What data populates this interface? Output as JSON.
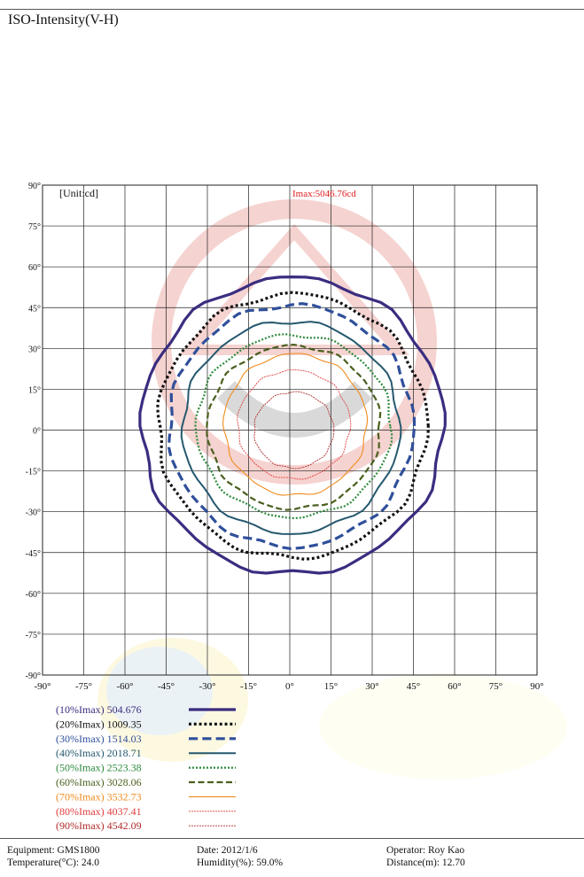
{
  "header": {
    "title": "ISO-Intensity(V-H)"
  },
  "chart_data": {
    "type": "line",
    "title": "ISO-Intensity(V-H)",
    "unit_label": "[Unit:cd]",
    "imax_label": "Imax:5046.76cd",
    "imax_cd": 5046.76,
    "xlim": [
      -90,
      90
    ],
    "ylim": [
      -90,
      90
    ],
    "x_ticks": [
      "-90°",
      "-75°",
      "-60°",
      "-45°",
      "-30°",
      "-15°",
      "0°",
      "15°",
      "30°",
      "45°",
      "60°",
      "75°",
      "90°"
    ],
    "y_ticks": [
      "90°",
      "75°",
      "60°",
      "45°",
      "30°",
      "15°",
      "0°",
      "-15°",
      "-30°",
      "-45°",
      "-60°",
      "-75°",
      "-90°"
    ],
    "grid": true,
    "series": [
      {
        "name": "(10%Imax) 504.676",
        "label": "(10%Imax)",
        "value": "504.676",
        "color": "#3a2d80",
        "dash": "solid",
        "width": 3.2,
        "extent": {
          "left": -54,
          "right": 56,
          "top": 56,
          "bottom": -53
        }
      },
      {
        "name": "(20%Imax) 1009.35",
        "label": "(20%Imax)",
        "value": "1009.35",
        "color": "#111111",
        "dash": "dot",
        "width": 3.2,
        "extent": {
          "left": -48,
          "right": 50,
          "top": 50,
          "bottom": -47
        }
      },
      {
        "name": "(30%Imax) 1514.03",
        "label": "(30%Imax)",
        "value": "1514.03",
        "color": "#2f4f9a",
        "dash": "dash",
        "width": 3.2,
        "extent": {
          "left": -44,
          "right": 45,
          "top": 46,
          "bottom": -43
        }
      },
      {
        "name": "(40%Imax) 2018.71",
        "label": "(40%Imax)",
        "value": "2018.71",
        "color": "#25586e",
        "dash": "solid",
        "width": 2,
        "extent": {
          "left": -39,
          "right": 40,
          "top": 40,
          "bottom": -38
        }
      },
      {
        "name": "(50%Imax) 2523.38",
        "label": "(50%Imax)",
        "value": "2523.38",
        "color": "#2d8a3c",
        "dash": "dot",
        "width": 2.2,
        "extent": {
          "left": -34,
          "right": 37,
          "top": 35,
          "bottom": -32
        }
      },
      {
        "name": "(60%Imax) 3028.06",
        "label": "(60%Imax)",
        "value": "3028.06",
        "color": "#4a5f1e",
        "dash": "dash",
        "width": 2.2,
        "extent": {
          "left": -30,
          "right": 33,
          "top": 31,
          "bottom": -29
        }
      },
      {
        "name": "(70%Imax) 3532.73",
        "label": "(70%Imax)",
        "value": "3532.73",
        "color": "#f08c1e",
        "dash": "solid",
        "width": 1.1,
        "extent": {
          "left": -24,
          "right": 28,
          "top": 28,
          "bottom": -24
        }
      },
      {
        "name": "(80%Imax) 4037.41",
        "label": "(80%Imax)",
        "value": "4037.41",
        "color": "#e03c3c",
        "dash": "fine",
        "width": 0.9,
        "extent": {
          "left": -19,
          "right": 22,
          "top": 22,
          "bottom": -18
        }
      },
      {
        "name": "(90%Imax) 4542.09",
        "label": "(90%Imax)",
        "value": "4542.09",
        "color": "#b02a2a",
        "dash": "fine",
        "width": 0.9,
        "extent": {
          "left": -13,
          "right": 16,
          "top": 14,
          "bottom": -14
        }
      }
    ]
  },
  "footer": {
    "equipment": "Equipment: GMS1800",
    "temperature": "Temperature(°C): 24.0",
    "date": "Date: 2012/1/6",
    "humidity": "Humidity(%): 59.0%",
    "operator": "Operator: Roy Kao",
    "distance": "Distance(m): 12.70"
  }
}
